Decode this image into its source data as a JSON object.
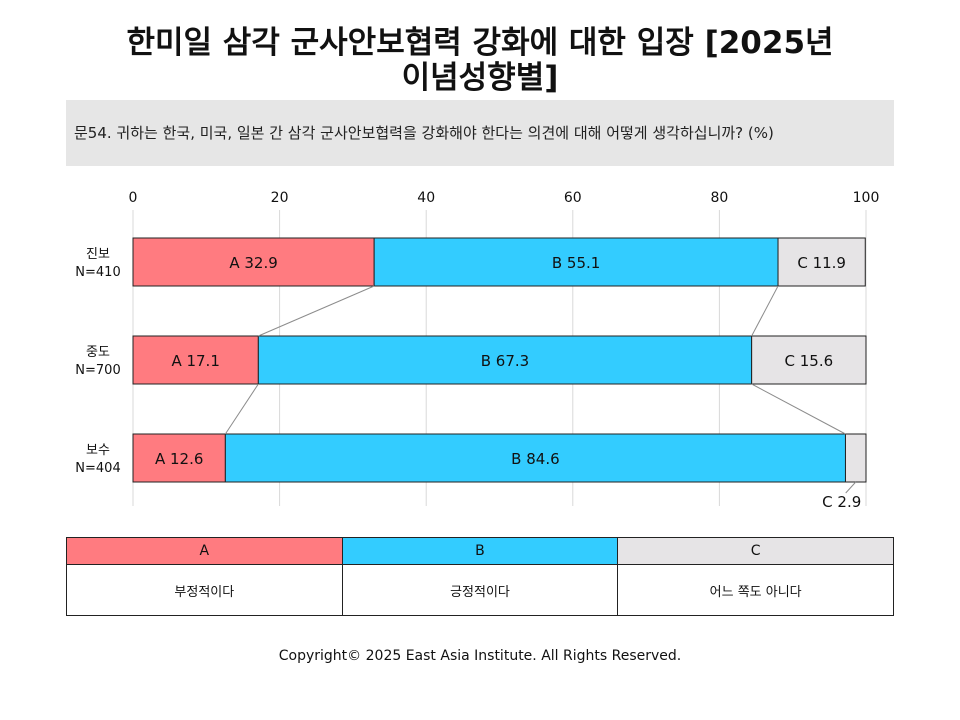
{
  "title_line1": "한미일 삼각 군사안보협력 강화에 대한 입장 [2025년",
  "title_line2": "이념성향별]",
  "question": "문54. 귀하는 한국, 미국, 일본 간 삼각 군사안보협력을 강화해야 한다는 의견에 대해 어떻게 생각하십니까?    (%)",
  "colors": {
    "A": "#ff7b80",
    "B": "#33ccff",
    "C": "#e6e4e6"
  },
  "chart_data": {
    "type": "bar",
    "orientation": "horizontal",
    "stacked": true,
    "xlim": [
      0,
      100
    ],
    "xticks": [
      0,
      20,
      40,
      60,
      80,
      100
    ],
    "grid": true,
    "categories": [
      {
        "name": "진보",
        "n": "N=410"
      },
      {
        "name": "중도",
        "n": "N=700"
      },
      {
        "name": "보수",
        "n": "N=404"
      }
    ],
    "series": [
      {
        "name": "A",
        "values": [
          32.9,
          17.1,
          12.6
        ]
      },
      {
        "name": "B",
        "values": [
          55.1,
          67.3,
          84.6
        ]
      },
      {
        "name": "C",
        "values": [
          11.9,
          15.6,
          2.9
        ]
      }
    ]
  },
  "legend": [
    {
      "key": "A",
      "label": "부정적이다"
    },
    {
      "key": "B",
      "label": "긍정적이다"
    },
    {
      "key": "C",
      "label": "어느 쪽도 아니다"
    }
  ],
  "footer": "Copyright© 2025 East Asia Institute. All Rights Reserved."
}
